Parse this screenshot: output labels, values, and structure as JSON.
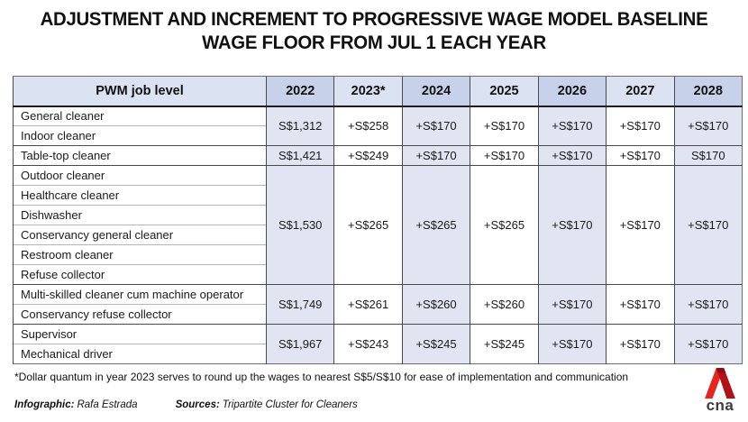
{
  "title": {
    "line1": "ADJUSTMENT AND INCREMENT TO PROGRESSIVE WAGE MODEL BASELINE",
    "line2": "WAGE FLOOR FROM JUL 1 EACH YEAR"
  },
  "chart_data": {
    "type": "table",
    "title": "ADJUSTMENT AND INCREMENT TO PROGRESSIVE WAGE MODEL BASELINE WAGE FLOOR FROM JUL 1 EACH YEAR",
    "columns": [
      "PWM job level",
      "2022",
      "2023*",
      "2024",
      "2025",
      "2026",
      "2027",
      "2028"
    ],
    "groups": [
      {
        "jobs": [
          "General cleaner",
          "Indoor cleaner"
        ],
        "values": [
          "S$1,312",
          "+S$258",
          "+S$170",
          "+S$170",
          "+S$170",
          "+S$170",
          "+S$170"
        ]
      },
      {
        "jobs": [
          "Table-top cleaner"
        ],
        "values": [
          "S$1,421",
          "+S$249",
          "+S$170",
          "+S$170",
          "+S$170",
          "+S$170",
          "S$170"
        ]
      },
      {
        "jobs": [
          "Outdoor cleaner",
          "Healthcare cleaner",
          "Dishwasher",
          "Conservancy general cleaner",
          "Restroom cleaner",
          "Refuse collector"
        ],
        "values": [
          "S$1,530",
          "+S$265",
          "+S$265",
          "+S$265",
          "+S$170",
          "+S$170",
          "+S$170"
        ]
      },
      {
        "jobs": [
          "Multi-skilled cleaner cum machine operator",
          "Conservancy refuse collector"
        ],
        "values": [
          "S$1,749",
          "+S$261",
          "+S$260",
          "+S$260",
          "+S$170",
          "+S$170",
          "+S$170"
        ]
      },
      {
        "jobs": [
          "Supervisor",
          "Mechanical driver"
        ],
        "values": [
          "S$1,967",
          "+S$243",
          "+S$245",
          "+S$245",
          "+S$170",
          "+S$170",
          "+S$170"
        ]
      }
    ]
  },
  "footnote": "*Dollar quantum in year 2023 serves to round up the wages to nearest S$5/S$10 for ease of implementation and communication",
  "credits": {
    "infographic_label": "Infographic:",
    "infographic_name": "Rafa Estrada",
    "sources_label": "Sources:",
    "sources_name": "Tripartite Cluster for Cleaners"
  },
  "logo": {
    "text": "cna"
  },
  "colors": {
    "header_dark": "#c7d1e9",
    "header_light": "#dbe2f1",
    "body_tint": "#e0e5f1",
    "logo_red": "#e6251e",
    "logo_red_dark": "#b11218"
  }
}
